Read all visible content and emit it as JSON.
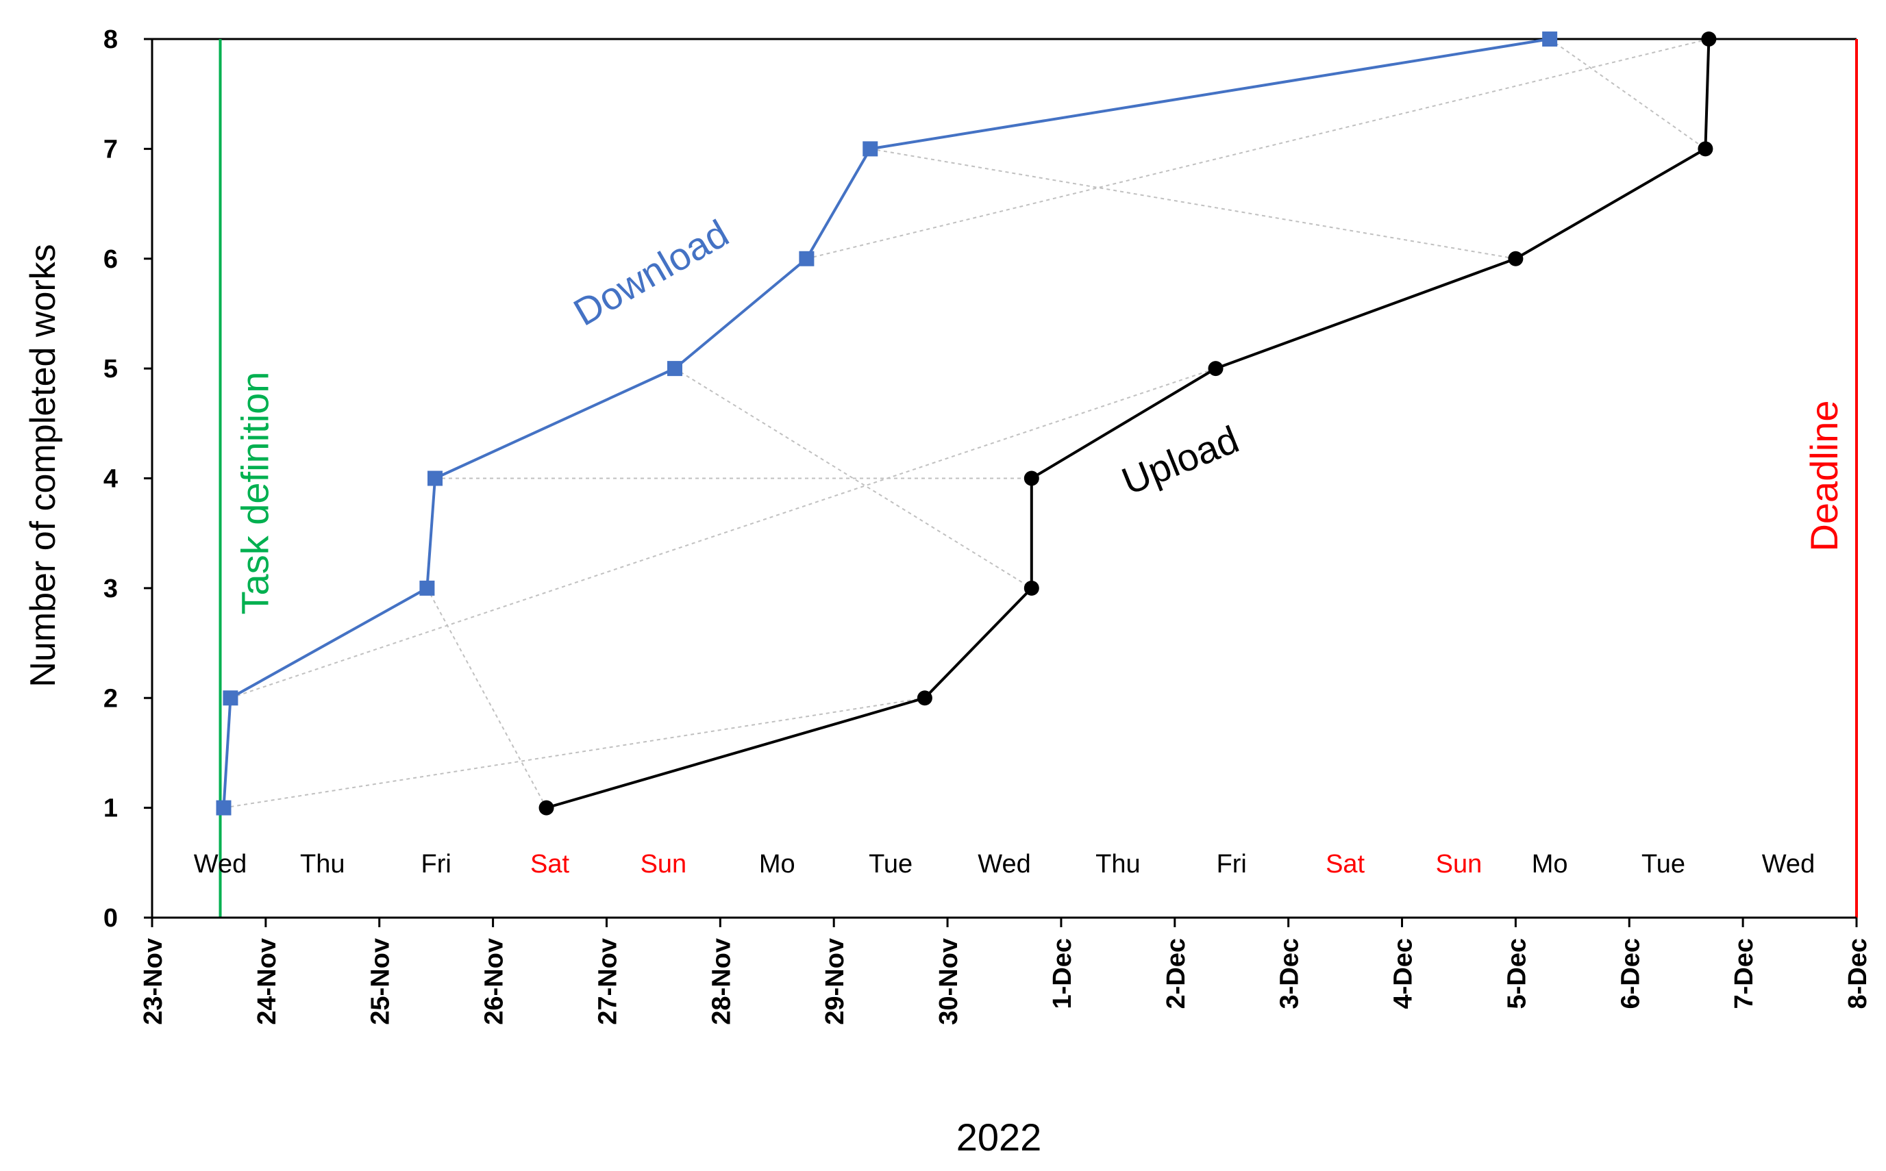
{
  "chart_data": {
    "type": "line",
    "xlabel": "2022",
    "ylabel": "Number of completed works",
    "x_tick_labels": [
      "23-Nov",
      "24-Nov",
      "25-Nov",
      "26-Nov",
      "27-Nov",
      "28-Nov",
      "29-Nov",
      "30-Nov",
      "1-Dec",
      "2-Dec",
      "3-Dec",
      "4-Dec",
      "5-Dec",
      "6-Dec",
      "7-Dec",
      "8-Dec"
    ],
    "y_ticks": [
      0,
      1,
      2,
      3,
      4,
      5,
      6,
      7,
      8
    ],
    "ylim": [
      0,
      8
    ],
    "xlim_days": [
      0,
      15
    ],
    "weekday_labels": [
      {
        "label": "Wed",
        "day": 0.6,
        "color": "#000000"
      },
      {
        "label": "Thu",
        "day": 1.5,
        "color": "#000000"
      },
      {
        "label": "Fri",
        "day": 2.5,
        "color": "#000000"
      },
      {
        "label": "Sat",
        "day": 3.5,
        "color": "#ff0000"
      },
      {
        "label": "Sun",
        "day": 4.5,
        "color": "#ff0000"
      },
      {
        "label": "Mo",
        "day": 5.5,
        "color": "#000000"
      },
      {
        "label": "Tue",
        "day": 6.5,
        "color": "#000000"
      },
      {
        "label": "Wed",
        "day": 7.5,
        "color": "#000000"
      },
      {
        "label": "Thu",
        "day": 8.5,
        "color": "#000000"
      },
      {
        "label": "Fri",
        "day": 9.5,
        "color": "#000000"
      },
      {
        "label": "Sat",
        "day": 10.5,
        "color": "#ff0000"
      },
      {
        "label": "Sun",
        "day": 11.5,
        "color": "#ff0000"
      },
      {
        "label": "Mo",
        "day": 12.3,
        "color": "#000000"
      },
      {
        "label": "Tue",
        "day": 13.3,
        "color": "#000000"
      },
      {
        "label": "Wed",
        "day": 14.4,
        "color": "#000000"
      }
    ],
    "series": [
      {
        "name": "Download",
        "color": "#4472c4",
        "marker": "square",
        "x": [
          0.63,
          0.69,
          2.42,
          2.49,
          4.6,
          5.76,
          6.32,
          12.3
        ],
        "y": [
          1,
          2,
          3,
          4,
          5,
          6,
          7,
          8
        ]
      },
      {
        "name": "Upload",
        "color": "#000000",
        "marker": "circle",
        "x": [
          3.47,
          6.8,
          7.74,
          7.74,
          9.36,
          12.0,
          13.67,
          13.7
        ],
        "y": [
          1,
          2,
          3,
          4,
          5,
          6,
          7,
          8
        ]
      }
    ],
    "connectors": {
      "color": "#c0c0c0",
      "style": "dotted-arrow",
      "pairs": [
        [
          1,
          2
        ],
        [
          2,
          5
        ],
        [
          3,
          1
        ],
        [
          4,
          4
        ],
        [
          5,
          3
        ],
        [
          6,
          8
        ],
        [
          7,
          6
        ],
        [
          8,
          7
        ]
      ]
    },
    "vertical_lines": [
      {
        "label": "Task definition",
        "day": 0.6,
        "color": "#00b050"
      },
      {
        "label": "Deadline",
        "day": 15,
        "color": "#ff0000"
      }
    ],
    "annotations": [
      {
        "text": "Download",
        "color": "#4472c4"
      },
      {
        "text": "Upload",
        "color": "#000000"
      }
    ],
    "grid": false,
    "legend": "none"
  }
}
